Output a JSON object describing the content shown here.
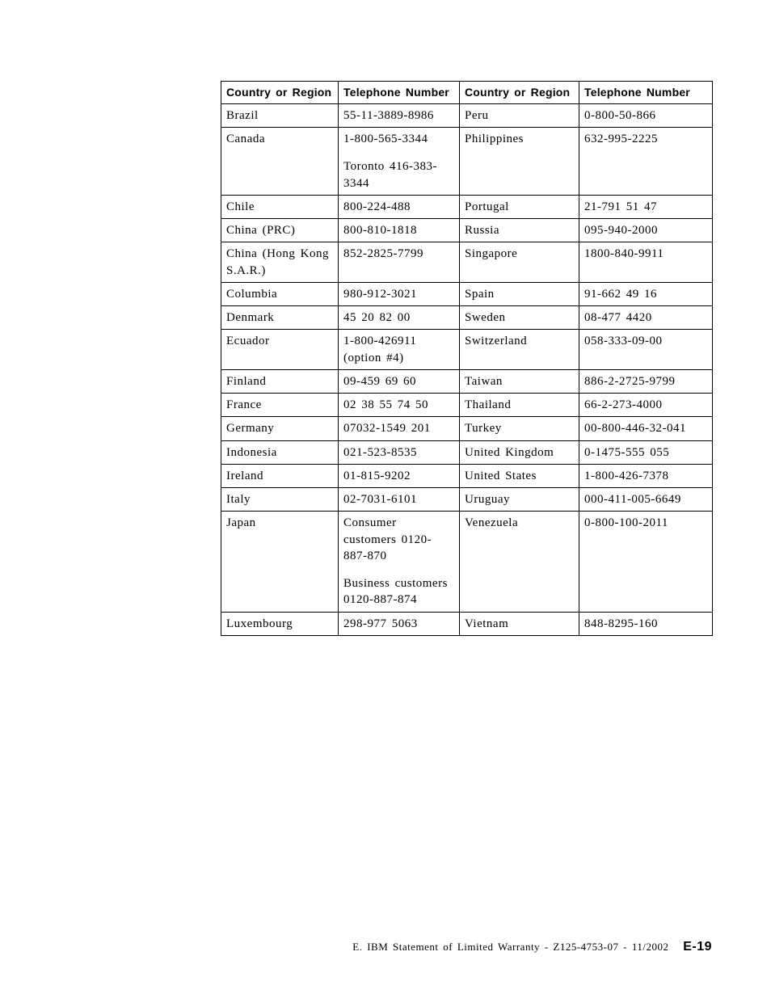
{
  "table": {
    "headers": [
      "Country or Region",
      "Telephone Number",
      "Country or Region",
      "Telephone Number"
    ],
    "rows": [
      {
        "c1": "Brazil",
        "p1": "55-11-3889-8986",
        "c2": "Peru",
        "p2": "0-800-50-866"
      },
      {
        "c1": "Canada",
        "p1a": "1-800-565-3344",
        "p1b": "Toronto 416-383-3344",
        "c2": "Philippines",
        "p2": "632-995-2225"
      },
      {
        "c1": "Chile",
        "p1": "800-224-488",
        "c2": "Portugal",
        "p2": "21-791 51 47"
      },
      {
        "c1": "China (PRC)",
        "p1": "800-810-1818",
        "c2": "Russia",
        "p2": "095-940-2000"
      },
      {
        "c1": "China (Hong Kong S.A.R.)",
        "p1": "852-2825-7799",
        "c2": "Singapore",
        "p2": "1800-840-9911"
      },
      {
        "c1": "Columbia",
        "p1": "980-912-3021",
        "c2": "Spain",
        "p2": "91-662 49 16"
      },
      {
        "c1": "Denmark",
        "p1": "45 20 82 00",
        "c2": "Sweden",
        "p2": "08-477 4420"
      },
      {
        "c1": "Ecuador",
        "p1": "1-800-426911 (option #4)",
        "c2": "Switzerland",
        "p2": "058-333-09-00"
      },
      {
        "c1": "Finland",
        "p1": "09-459 69 60",
        "c2": "Taiwan",
        "p2": "886-2-2725-9799"
      },
      {
        "c1": "France",
        "p1": "02 38 55 74 50",
        "c2": "Thailand",
        "p2": "66-2-273-4000"
      },
      {
        "c1": "Germany",
        "p1": "07032-1549 201",
        "c2": "Turkey",
        "p2": "00-800-446-32-041"
      },
      {
        "c1": "Indonesia",
        "p1": "021-523-8535",
        "c2": "United Kingdom",
        "p2": "0-1475-555 055"
      },
      {
        "c1": "Ireland",
        "p1": "01-815-9202",
        "c2": "United States",
        "p2": "1-800-426-7378"
      },
      {
        "c1": "Italy",
        "p1": "02-7031-6101",
        "c2": "Uruguay",
        "p2": "000-411-005-6649"
      },
      {
        "c1": "Japan",
        "p1a": "Consumer customers 0120-887-870",
        "p1b": "Business customers 0120-887-874",
        "c2": "Venezuela",
        "p2": "0-800-100-2011"
      },
      {
        "c1": "Luxembourg",
        "p1": "298-977 5063",
        "c2": "Vietnam",
        "p2": "848-8295-160"
      }
    ]
  },
  "footer": {
    "text": "E. IBM Statement of Limited Warranty - Z125-4753-07 - 11/2002",
    "page": "E-19"
  }
}
